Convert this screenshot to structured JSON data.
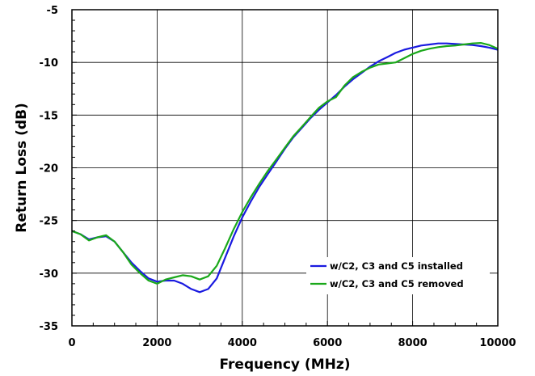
{
  "chart_data": {
    "type": "line",
    "xlabel": "Frequency (MHz)",
    "ylabel": "Return Loss (dB)",
    "xlim": [
      0,
      10000
    ],
    "ylim": [
      -35,
      -5
    ],
    "xticks": [
      0,
      2000,
      4000,
      6000,
      8000,
      10000
    ],
    "yticks": [
      -5,
      -10,
      -15,
      -20,
      -25,
      -30,
      -35
    ],
    "xtick_labels": [
      "0",
      "2000",
      "4000",
      "6000",
      "8000",
      "10000"
    ],
    "ytick_labels": [
      "-5",
      "-10",
      "-15",
      "-20",
      "-25",
      "-30",
      "-35"
    ],
    "grid": true,
    "legend_position": "bottom-right",
    "series": [
      {
        "name": "w/C2, C3 and C5 installed",
        "color": "#1a1ae0",
        "x": [
          0,
          200,
          400,
          600,
          800,
          1000,
          1200,
          1400,
          1600,
          1800,
          2000,
          2200,
          2400,
          2600,
          2800,
          3000,
          3200,
          3400,
          3600,
          3800,
          4000,
          4200,
          4400,
          4600,
          4800,
          5000,
          5200,
          5400,
          5600,
          5800,
          6000,
          6200,
          6400,
          6600,
          6800,
          7000,
          7200,
          7400,
          7600,
          7800,
          8000,
          8200,
          8400,
          8600,
          8800,
          9000,
          9200,
          9400,
          9600,
          9800,
          10000
        ],
        "y": [
          -26.0,
          -26.3,
          -26.8,
          -26.6,
          -26.5,
          -27.0,
          -28.0,
          -29.0,
          -29.8,
          -30.5,
          -30.8,
          -30.7,
          -30.7,
          -31.0,
          -31.5,
          -31.8,
          -31.5,
          -30.5,
          -28.5,
          -26.5,
          -24.7,
          -23.2,
          -21.8,
          -20.6,
          -19.4,
          -18.2,
          -17.1,
          -16.2,
          -15.3,
          -14.5,
          -13.8,
          -13.1,
          -12.3,
          -11.6,
          -11.0,
          -10.4,
          -9.9,
          -9.5,
          -9.1,
          -8.8,
          -8.6,
          -8.4,
          -8.3,
          -8.2,
          -8.2,
          -8.25,
          -8.3,
          -8.35,
          -8.45,
          -8.6,
          -8.8
        ]
      },
      {
        "name": "w/C2, C3 and C5 removed",
        "color": "#1aa81a",
        "x": [
          0,
          200,
          400,
          600,
          800,
          1000,
          1200,
          1400,
          1600,
          1800,
          2000,
          2200,
          2400,
          2600,
          2800,
          3000,
          3200,
          3400,
          3600,
          3800,
          4000,
          4200,
          4400,
          4600,
          4800,
          5000,
          5200,
          5400,
          5600,
          5800,
          6000,
          6200,
          6400,
          6600,
          6800,
          7000,
          7200,
          7400,
          7600,
          7800,
          8000,
          8200,
          8400,
          8600,
          8800,
          9000,
          9200,
          9400,
          9600,
          9800,
          10000
        ],
        "y": [
          -26.0,
          -26.3,
          -26.9,
          -26.6,
          -26.4,
          -27.0,
          -28.0,
          -29.2,
          -30.0,
          -30.7,
          -31.0,
          -30.6,
          -30.4,
          -30.2,
          -30.3,
          -30.6,
          -30.3,
          -29.3,
          -27.6,
          -25.8,
          -24.2,
          -22.8,
          -21.5,
          -20.3,
          -19.2,
          -18.1,
          -17.0,
          -16.1,
          -15.2,
          -14.3,
          -13.7,
          -13.3,
          -12.2,
          -11.4,
          -10.9,
          -10.5,
          -10.2,
          -10.1,
          -10.0,
          -9.6,
          -9.2,
          -8.9,
          -8.7,
          -8.55,
          -8.45,
          -8.4,
          -8.3,
          -8.2,
          -8.15,
          -8.35,
          -8.7
        ]
      }
    ]
  }
}
